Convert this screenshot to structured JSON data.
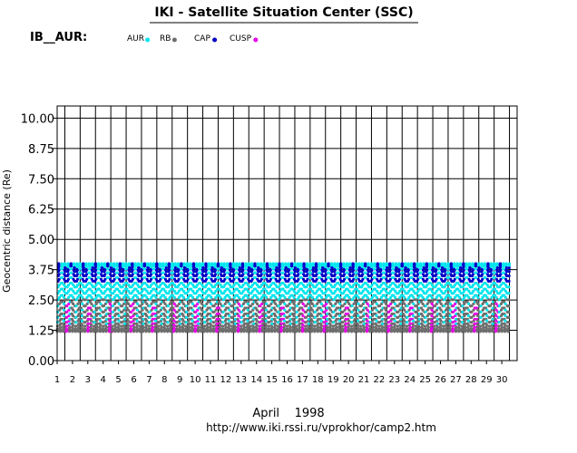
{
  "header": {
    "title": "IKI - Satellite Situation Center (SSC)",
    "panel_label": "IB__AUR:",
    "url": "http://www.iki.rssi.ru/vprokhor/camp2.htm"
  },
  "legend": [
    {
      "name": "AUR",
      "color": "#00e5ee"
    },
    {
      "name": "RB",
      "color": "#6e6e6e"
    },
    {
      "name": "CAP",
      "color": "#0000c8"
    },
    {
      "name": "CUSP",
      "color": "#e600e6"
    }
  ],
  "chart_data": {
    "type": "scatter",
    "title": "IKI - Satellite Situation Center (SSC)",
    "xlabel": "April    1998",
    "ylabel": "Geocentric distance (Re)",
    "xlim": [
      1,
      31
    ],
    "ylim": [
      0,
      10.5
    ],
    "x_ticks": [
      1,
      2,
      3,
      4,
      5,
      6,
      7,
      8,
      9,
      10,
      11,
      12,
      13,
      14,
      15,
      16,
      17,
      18,
      19,
      20,
      21,
      22,
      23,
      24,
      25,
      26,
      27,
      28,
      29,
      30
    ],
    "x_tick_labels": [
      "1",
      "2",
      "3",
      "4",
      "5",
      "6",
      "7",
      "8",
      "9",
      "10",
      "11",
      "12",
      "13",
      "14",
      "15",
      "16",
      "17",
      "18",
      "19",
      "20",
      "21",
      "22",
      "23",
      "24",
      "25",
      "26",
      "27",
      "28",
      "29",
      "30"
    ],
    "y_ticks": [
      0,
      1.25,
      2.5,
      3.75,
      5,
      6.25,
      7.5,
      8.75,
      10
    ],
    "y_tick_labels": [
      "0.00",
      "1.25",
      "2.50",
      "3.75",
      "5.00",
      "6.25",
      "7.50",
      "8.75",
      "10.00"
    ],
    "grid": true,
    "legend_position": "top",
    "orbit": {
      "period_days": 0.2,
      "min_re": 1.2,
      "max_re": 4.0
    },
    "series": [
      {
        "name": "AUR",
        "color": "#00e5ee",
        "range_re": [
          1.25,
          4.0
        ]
      },
      {
        "name": "RB",
        "color": "#6e6e6e",
        "range_re": [
          1.2,
          2.6
        ]
      },
      {
        "name": "CAP",
        "color": "#0000c8",
        "range_re": [
          2.6,
          4.0
        ]
      },
      {
        "name": "CUSP",
        "color": "#e600e6",
        "range_re": [
          1.25,
          2.5
        ]
      }
    ]
  }
}
